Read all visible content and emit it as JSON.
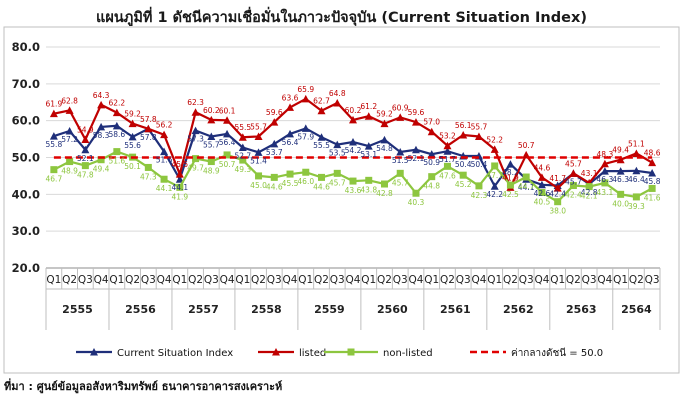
{
  "chart_data": {
    "type": "line",
    "title": "แผนภูมิที่ 1 ดัชนีความเชื่อมั่นในภาวะปัจจุบัน (Current Situation Index)",
    "ylim": [
      20,
      80
    ],
    "yticks": [
      "20.0",
      "30.0",
      "40.0",
      "50.0",
      "60.0",
      "70.0",
      "80.0"
    ],
    "ytick_values": [
      20,
      30,
      40,
      50,
      60,
      70,
      80
    ],
    "quarters": [
      "Q1",
      "Q2",
      "Q3",
      "Q4",
      "Q1",
      "Q2",
      "Q3",
      "Q4",
      "Q1",
      "Q2",
      "Q3",
      "Q4",
      "Q1",
      "Q2",
      "Q3",
      "Q4",
      "Q1",
      "Q2",
      "Q3",
      "Q4",
      "Q1",
      "Q2",
      "Q3",
      "Q4",
      "Q1",
      "Q2",
      "Q3",
      "Q4",
      "Q1",
      "Q2",
      "Q3",
      "Q4",
      "Q1",
      "Q2",
      "Q3",
      "Q4",
      "Q1",
      "Q2",
      "Q3"
    ],
    "years": [
      {
        "label": "2555",
        "count": 4
      },
      {
        "label": "2556",
        "count": 4
      },
      {
        "label": "2557",
        "count": 4
      },
      {
        "label": "2558",
        "count": 4
      },
      {
        "label": "2559",
        "count": 4
      },
      {
        "label": "2560",
        "count": 4
      },
      {
        "label": "2561",
        "count": 4
      },
      {
        "label": "2562",
        "count": 4
      },
      {
        "label": "2563",
        "count": 4
      },
      {
        "label": "2564",
        "count": 3
      }
    ],
    "series": [
      {
        "name": "Current Situation Index",
        "color": "#1f2f7a",
        "marker": "triangle",
        "values": [
          55.8,
          57.2,
          52.1,
          58.3,
          58.6,
          55.6,
          57.8,
          51.6,
          44.1,
          57.3,
          55.7,
          56.4,
          52.7,
          51.4,
          53.7,
          56.4,
          57.9,
          55.5,
          53.5,
          54.2,
          53.1,
          54.8,
          51.5,
          52.1,
          50.9,
          51.7,
          50.4,
          50.4,
          42.2,
          48.2,
          44.1,
          42.6,
          42.4,
          45.7,
          42.8,
          46.3,
          46.3,
          46.4,
          45.8
        ],
        "labels": [
          "55.8",
          "57.2",
          "52.1",
          "58.3",
          "58.6",
          "55.6",
          "57.8",
          "51.6",
          "44.1",
          "57.3",
          "55.7",
          "56.4",
          "52.7",
          "51.4",
          "53.7",
          "56.4",
          "57.9",
          "55.5",
          "53.5",
          "54.2",
          "53.1",
          "54.8",
          "51.5",
          "52.1",
          "50.9",
          "51.7",
          "50.4",
          "50.4",
          "42.2",
          "48.2",
          "44.1",
          "42.6",
          "42.4",
          "45.7",
          "42.8",
          "46.3",
          "46.3",
          "46.4",
          "45.8"
        ]
      },
      {
        "name": "listed",
        "color": "#c00000",
        "marker": "triangle",
        "values": [
          61.9,
          62.8,
          54.9,
          64.3,
          62.2,
          59.2,
          57.8,
          56.2,
          45.5,
          62.3,
          60.2,
          60.1,
          55.5,
          55.7,
          59.6,
          63.6,
          65.9,
          62.7,
          64.8,
          60.2,
          61.2,
          59.2,
          60.9,
          59.6,
          57.0,
          53.2,
          56.1,
          55.7,
          52.2,
          41.9,
          50.7,
          44.6,
          41.7,
          45.7,
          43.1,
          48.3,
          49.4,
          51.1,
          48.6
        ],
        "labels": [
          "61.9",
          "62.8",
          "54.9",
          "64.3",
          "62.2",
          "59.2",
          "57.8",
          "56.2",
          "45.5",
          "62.3",
          "60.2",
          "60.1",
          "55.5",
          "55.7",
          "59.6",
          "63.6",
          "65.9",
          "62.7",
          "64.8",
          "60.2",
          "61.2",
          "59.2",
          "60.9",
          "59.6",
          "57.0",
          "53.2",
          "56.1",
          "55.7",
          "52.2",
          "41.9",
          "50.7",
          "44.6",
          "41.7",
          "45.7",
          "43.1",
          "48.3",
          "49.4",
          "51.1",
          "48.6"
        ]
      },
      {
        "name": "non-listed",
        "color": "#8dc63f",
        "marker": "square",
        "values": [
          46.7,
          48.9,
          47.8,
          49.4,
          51.6,
          50.1,
          47.3,
          44.1,
          41.9,
          49.7,
          48.9,
          50.7,
          49.3,
          45.0,
          44.6,
          45.5,
          46.0,
          44.6,
          45.7,
          43.6,
          43.8,
          42.8,
          45.7,
          40.3,
          44.8,
          47.6,
          45.2,
          42.3,
          47.7,
          42.5,
          44.7,
          40.5,
          38.0,
          42.4,
          42.1,
          43.1,
          40.0,
          39.3,
          41.6
        ],
        "labels": [
          "46.7",
          "48.9",
          "47.8",
          "49.4",
          "51.6",
          "50.1",
          "47.3",
          "44.1",
          "41.9",
          "49.7",
          "48.9",
          "50.7",
          "49.3",
          "45.0",
          "44.6",
          "45.5",
          "46.0",
          "44.6",
          "45.7",
          "43.6",
          "43.8",
          "42.8",
          "45.7",
          "40.3",
          "44.8",
          "47.6",
          "45.2",
          "42.3",
          "47.7",
          "42.5",
          "44.7",
          "40.5",
          "38.0",
          "42.4",
          "42.1",
          "43.1",
          "40.0",
          "39.3",
          "41.6"
        ]
      },
      {
        "name": "ค่ากลางดัชนี = 50.0",
        "color": "#e00000",
        "style": "dashed",
        "values": [
          50,
          50,
          50,
          50,
          50,
          50,
          50,
          50,
          50,
          50,
          50,
          50,
          50,
          50,
          50,
          50,
          50,
          50,
          50,
          50,
          50,
          50,
          50,
          50,
          50,
          50,
          50,
          50,
          50,
          50,
          50,
          50,
          50,
          50,
          50,
          50,
          50,
          50,
          50
        ]
      }
    ],
    "grid": true,
    "legend": "bottom"
  },
  "source": "ที่มา : ศูนย์ข้อมูลอสังหาริมทรัพย์ ธนาคารอาคารสงเคราะห์"
}
